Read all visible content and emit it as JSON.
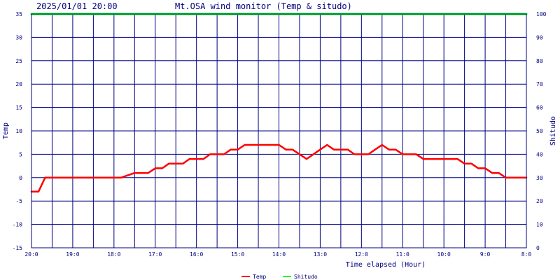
{
  "header": {
    "timestamp": "2025/01/01 20:00",
    "title": "Mt.OSA wind monitor (Temp & situdo)"
  },
  "colors": {
    "axis": "#000080",
    "grid": "#000080",
    "temp_line": "#ff0000",
    "situdo_line": "#00ff00",
    "background": "#ffffff"
  },
  "chart_data": {
    "type": "line",
    "title": "Mt.OSA wind monitor (Temp & situdo)",
    "xlabel": "Time elapsed (Hour)",
    "ylabel_left": "Temp",
    "ylabel_right": "Shitudo",
    "x_tick_labels": [
      "20:0",
      "19:0",
      "18:0",
      "17:0",
      "16:0",
      "15:0",
      "14:0",
      "13:0",
      "12:0",
      "11:0",
      "10:0",
      "9:0",
      "8:0"
    ],
    "x_ticks_count": 25,
    "x_range_hours": [
      0,
      12
    ],
    "y_left_lim": [
      -15,
      35
    ],
    "y_left_ticks": [
      -15,
      -10,
      -5,
      0,
      5,
      10,
      15,
      20,
      25,
      30,
      35
    ],
    "y_right_lim": [
      0,
      100
    ],
    "y_right_ticks": [
      0,
      10,
      20,
      30,
      40,
      50,
      60,
      70,
      80,
      90,
      100
    ],
    "grid": true,
    "legend_position": "bottom-center",
    "series": [
      {
        "name": "Temp",
        "axis": "left",
        "color": "#ff0000",
        "points": [
          [
            0.0,
            -3
          ],
          [
            0.17,
            -3
          ],
          [
            0.33,
            0
          ],
          [
            2.17,
            0
          ],
          [
            2.5,
            1
          ],
          [
            2.67,
            1
          ],
          [
            2.83,
            1
          ],
          [
            3.0,
            2
          ],
          [
            3.17,
            2
          ],
          [
            3.33,
            3
          ],
          [
            3.67,
            3
          ],
          [
            3.83,
            4
          ],
          [
            4.17,
            4
          ],
          [
            4.33,
            5
          ],
          [
            4.67,
            5
          ],
          [
            4.83,
            6
          ],
          [
            5.0,
            6
          ],
          [
            5.17,
            7
          ],
          [
            6.0,
            7
          ],
          [
            6.17,
            6
          ],
          [
            6.33,
            6
          ],
          [
            6.5,
            5
          ],
          [
            6.67,
            4
          ],
          [
            7.0,
            6
          ],
          [
            7.17,
            7
          ],
          [
            7.33,
            6
          ],
          [
            7.67,
            6
          ],
          [
            7.83,
            5
          ],
          [
            8.17,
            5
          ],
          [
            8.33,
            6
          ],
          [
            8.5,
            7
          ],
          [
            8.67,
            6
          ],
          [
            8.83,
            6
          ],
          [
            9.0,
            5
          ],
          [
            9.33,
            5
          ],
          [
            9.5,
            4
          ],
          [
            10.33,
            4
          ],
          [
            10.5,
            3
          ],
          [
            10.67,
            3
          ],
          [
            10.83,
            2
          ],
          [
            11.0,
            2
          ],
          [
            11.17,
            1
          ],
          [
            11.33,
            1
          ],
          [
            11.5,
            0
          ],
          [
            12.0,
            0
          ]
        ]
      },
      {
        "name": "Shitudo",
        "axis": "right",
        "color": "#00ff00",
        "points": [
          [
            0.0,
            100
          ],
          [
            12.0,
            100
          ]
        ]
      }
    ]
  }
}
